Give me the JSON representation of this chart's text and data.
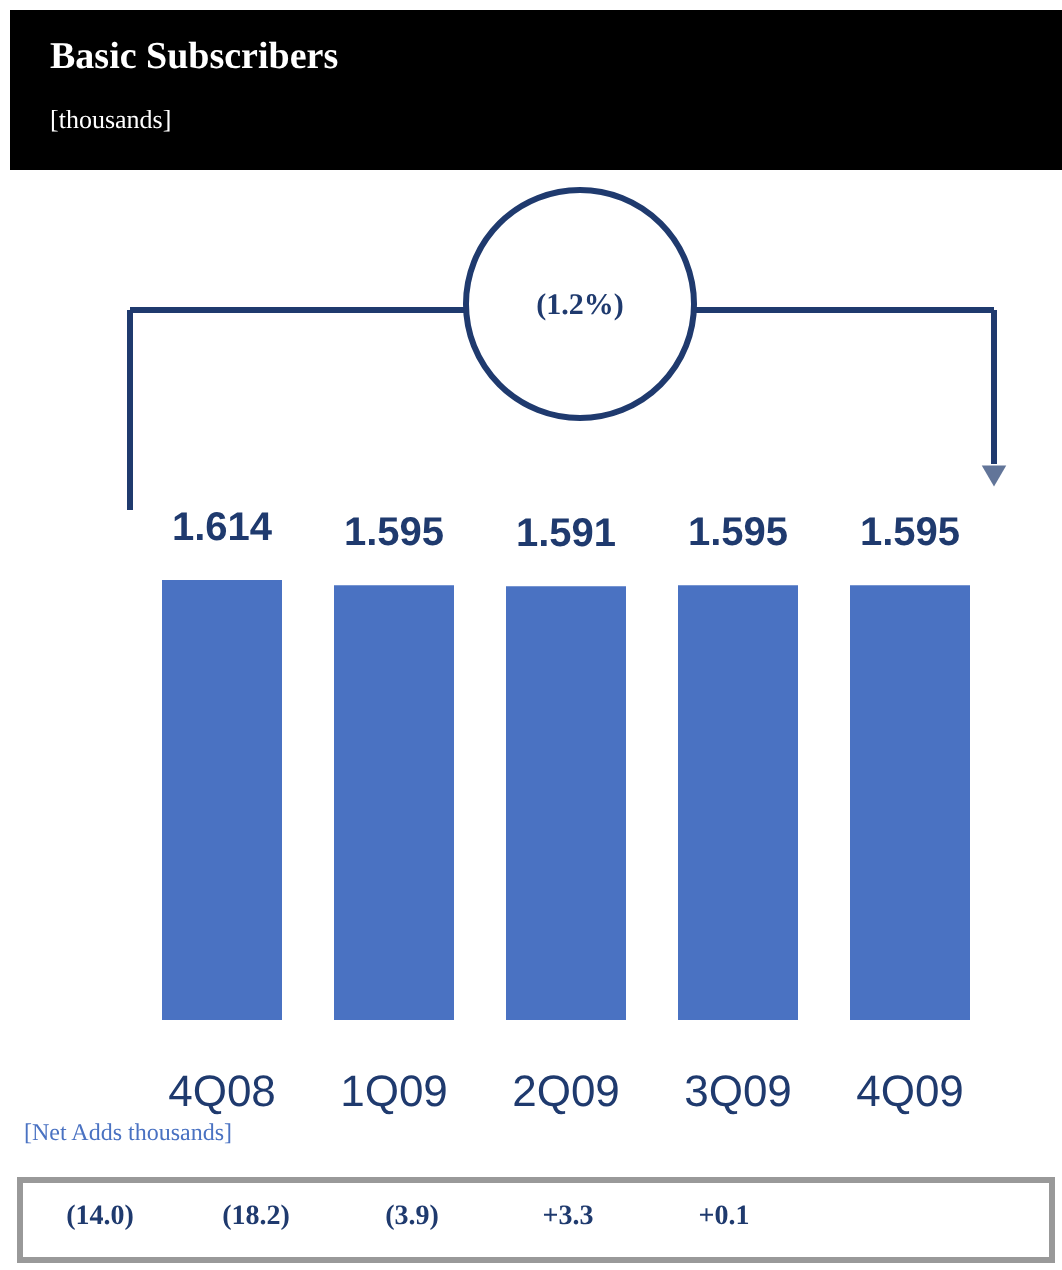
{
  "chart_data": {
    "type": "bar",
    "title": "Basic Subscribers",
    "subtitle": "[thousands]",
    "categories": [
      "4Q08",
      "1Q09",
      "2Q09",
      "3Q09",
      "4Q09"
    ],
    "series": [
      {
        "color": "#4a72c2",
        "values": [
          1.614,
          1.595,
          1.591,
          1.595,
          1.595
        ]
      }
    ],
    "data_labels": true,
    "annotations": [
      "(1.2%)",
      "[Net Adds thousands]",
      "(14.0)",
      "(18.2)",
      "(3.9)",
      "+3.3",
      "+0.1"
    ]
  }
}
